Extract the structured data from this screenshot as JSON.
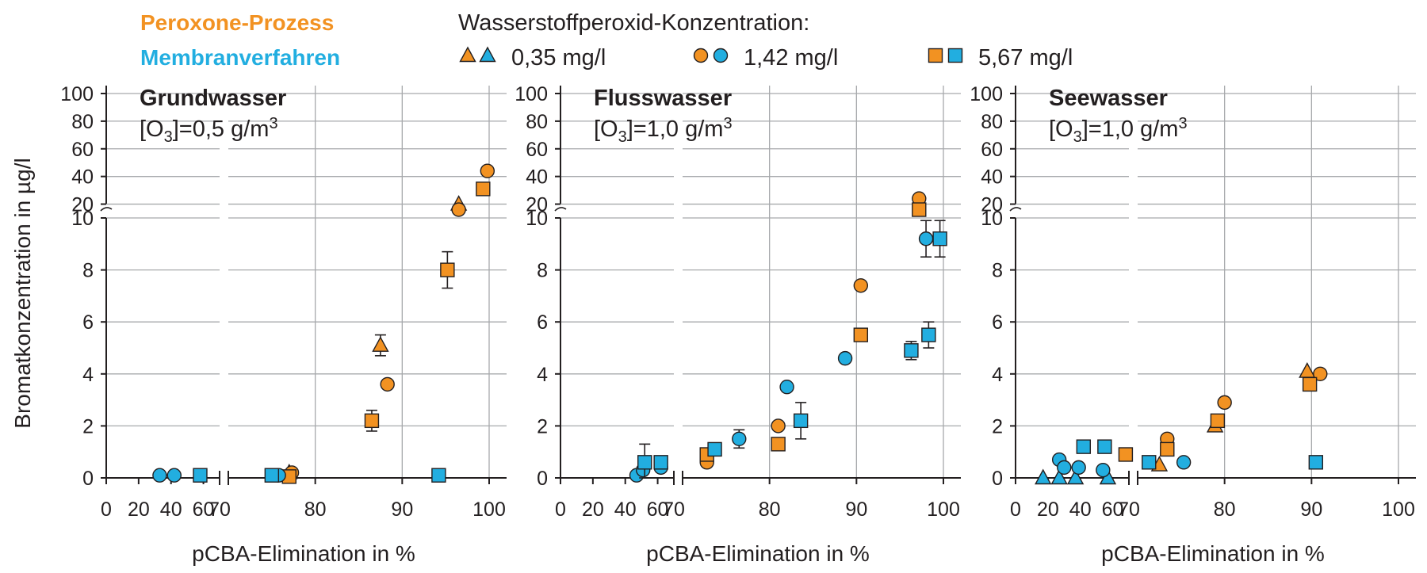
{
  "legend": {
    "process_label": "Peroxone-Prozess",
    "membrane_label": "Membranverfahren",
    "concentration_heading": "Wasserstoffperoxid-Konzentration:",
    "items": [
      {
        "label": "0,35 mg/l",
        "marker": "triangle"
      },
      {
        "label": "1,42 mg/l",
        "marker": "circle"
      },
      {
        "label": "5,67 mg/l",
        "marker": "square"
      }
    ]
  },
  "colors": {
    "peroxone": "#f29222",
    "membrane": "#22aee0",
    "grid": "#a7a9ac",
    "axis": "#231f20"
  },
  "y_axis": {
    "label": "Bromatkonzentration in µg/l",
    "lower_range": [
      0,
      10
    ],
    "lower_ticks": [
      "0",
      "2",
      "4",
      "6",
      "8",
      "10"
    ],
    "upper_range": [
      10,
      100
    ],
    "upper_ticks": [
      "20",
      "40",
      "60",
      "80",
      "100"
    ]
  },
  "x_axis": {
    "label": "pCBA-Elimination in %",
    "compressed_range": [
      0,
      70
    ],
    "compressed_ticks": [
      "0",
      "20",
      "40",
      "60"
    ],
    "main_range": [
      70,
      100
    ],
    "main_ticks": [
      "70",
      "80",
      "90",
      "100"
    ]
  },
  "chart_data": [
    {
      "type": "scatter",
      "title": "Grundwasser",
      "subtitle_parts": {
        "pre": "[O",
        "sub": "3",
        "mid": "]=0,5 g/m",
        "sup": "3"
      },
      "xlabel": "pCBA-Elimination in %",
      "ylabel": "Bromatkonzentration in µg/l",
      "axis_break": {
        "x": 70,
        "y": 10
      },
      "series": [
        {
          "name": "Peroxone-Prozess",
          "h2o2": "0,35 mg/l",
          "marker": "triangle",
          "points": [
            {
              "x": 77,
              "y": 0.2
            },
            {
              "x": 87.5,
              "y": 5.1,
              "err": 0.4
            },
            {
              "x": 96.5,
              "y": 20
            }
          ]
        },
        {
          "name": "Peroxone-Prozess",
          "h2o2": "1,42 mg/l",
          "marker": "circle",
          "points": [
            {
              "x": 77.3,
              "y": 0.2
            },
            {
              "x": 88.3,
              "y": 3.6
            },
            {
              "x": 96.5,
              "y": 16
            },
            {
              "x": 99.8,
              "y": 44
            }
          ]
        },
        {
          "name": "Peroxone-Prozess",
          "h2o2": "5,67 mg/l",
          "marker": "square",
          "points": [
            {
              "x": 77,
              "y": 0.05
            },
            {
              "x": 86.5,
              "y": 2.2,
              "err": 0.4
            },
            {
              "x": 95.2,
              "y": 8,
              "err": 0.7
            },
            {
              "x": 99.3,
              "y": 31
            }
          ]
        },
        {
          "name": "Membranverfahren",
          "h2o2": "1,42 mg/l",
          "marker": "circle",
          "points": [
            {
              "x": 33,
              "y": 0.1
            },
            {
              "x": 42,
              "y": 0.1
            },
            {
              "x": 75.8,
              "y": 0.1
            }
          ]
        },
        {
          "name": "Membranverfahren",
          "h2o2": "5,67 mg/l",
          "marker": "square",
          "points": [
            {
              "x": 58,
              "y": 0.1
            },
            {
              "x": 75,
              "y": 0.1
            },
            {
              "x": 94.2,
              "y": 0.1
            }
          ]
        }
      ]
    },
    {
      "type": "scatter",
      "title": "Flusswasser",
      "subtitle_parts": {
        "pre": "[O",
        "sub": "3",
        "mid": "]=1,0 g/m",
        "sup": "3"
      },
      "xlabel": "pCBA-Elimination in %",
      "ylabel": "Bromatkonzentration in µg/l",
      "axis_break": {
        "x": 70,
        "y": 10
      },
      "series": [
        {
          "name": "Peroxone-Prozess",
          "h2o2": "1,42 mg/l",
          "marker": "circle",
          "points": [
            {
              "x": 72.8,
              "y": 0.6
            },
            {
              "x": 81,
              "y": 2
            },
            {
              "x": 90.5,
              "y": 7.4
            },
            {
              "x": 97.2,
              "y": 24
            }
          ]
        },
        {
          "name": "Peroxone-Prozess",
          "h2o2": "5,67 mg/l",
          "marker": "square",
          "points": [
            {
              "x": 72.8,
              "y": 0.9
            },
            {
              "x": 81,
              "y": 1.3
            },
            {
              "x": 90.5,
              "y": 5.5
            },
            {
              "x": 97.2,
              "y": 16
            }
          ]
        },
        {
          "name": "Membranverfahren",
          "h2o2": "1,42 mg/l",
          "marker": "circle",
          "points": [
            {
              "x": 47,
              "y": 0.1
            },
            {
              "x": 51,
              "y": 0.3
            },
            {
              "x": 62,
              "y": 0.4
            },
            {
              "x": 76.5,
              "y": 1.5,
              "err": 0.35
            },
            {
              "x": 82,
              "y": 3.5
            },
            {
              "x": 88.7,
              "y": 4.6
            },
            {
              "x": 98,
              "y": 9.2,
              "err": 0.7
            }
          ]
        },
        {
          "name": "Membranverfahren",
          "h2o2": "5,67 mg/l",
          "marker": "square",
          "points": [
            {
              "x": 52,
              "y": 0.6,
              "err": 0.7
            },
            {
              "x": 62,
              "y": 0.6
            },
            {
              "x": 73.7,
              "y": 1.1
            },
            {
              "x": 83.6,
              "y": 2.2,
              "err": 0.7
            },
            {
              "x": 96.3,
              "y": 4.9,
              "err": 0.35
            },
            {
              "x": 98.3,
              "y": 5.5,
              "err": 0.5
            },
            {
              "x": 99.6,
              "y": 9.2,
              "err": 0.7
            }
          ]
        }
      ]
    },
    {
      "type": "scatter",
      "title": "Seewasser",
      "subtitle_parts": {
        "pre": "[O",
        "sub": "3",
        "mid": "]=1,0 g/m",
        "sup": "3"
      },
      "xlabel": "pCBA-Elimination in %",
      "ylabel": "Bromatkonzentration in µg/l",
      "axis_break": {
        "x": 70,
        "y": 10
      },
      "series": [
        {
          "name": "Peroxone-Prozess",
          "h2o2": "0,35 mg/l",
          "marker": "triangle",
          "points": [
            {
              "x": 72.5,
              "y": 0.5
            },
            {
              "x": 78.9,
              "y": 2
            },
            {
              "x": 89.5,
              "y": 4.1
            }
          ]
        },
        {
          "name": "Peroxone-Prozess",
          "h2o2": "1,42 mg/l",
          "marker": "circle",
          "points": [
            {
              "x": 73.4,
              "y": 1.5
            },
            {
              "x": 80,
              "y": 2.9
            },
            {
              "x": 91,
              "y": 4
            }
          ]
        },
        {
          "name": "Peroxone-Prozess",
          "h2o2": "5,67 mg/l",
          "marker": "square",
          "points": [
            {
              "x": 68,
              "y": 0.9
            },
            {
              "x": 73.4,
              "y": 1.1
            },
            {
              "x": 79.2,
              "y": 2.2
            },
            {
              "x": 89.8,
              "y": 3.6
            }
          ]
        },
        {
          "name": "Membranverfahren",
          "h2o2": "0,35 mg/l",
          "marker": "triangle",
          "points": [
            {
              "x": 17,
              "y": 0
            },
            {
              "x": 27,
              "y": 0
            },
            {
              "x": 37,
              "y": 0
            },
            {
              "x": 57,
              "y": 0
            }
          ]
        },
        {
          "name": "Membranverfahren",
          "h2o2": "1,42 mg/l",
          "marker": "circle",
          "points": [
            {
              "x": 27,
              "y": 0.7
            },
            {
              "x": 30,
              "y": 0.4
            },
            {
              "x": 39,
              "y": 0.4
            },
            {
              "x": 54,
              "y": 0.3
            },
            {
              "x": 75.3,
              "y": 0.6
            }
          ]
        },
        {
          "name": "Membranverfahren",
          "h2o2": "5,67 mg/l",
          "marker": "square",
          "points": [
            {
              "x": 42,
              "y": 1.2
            },
            {
              "x": 55,
              "y": 1.2
            },
            {
              "x": 71.3,
              "y": 0.6
            },
            {
              "x": 90.5,
              "y": 0.6
            }
          ]
        }
      ]
    }
  ]
}
